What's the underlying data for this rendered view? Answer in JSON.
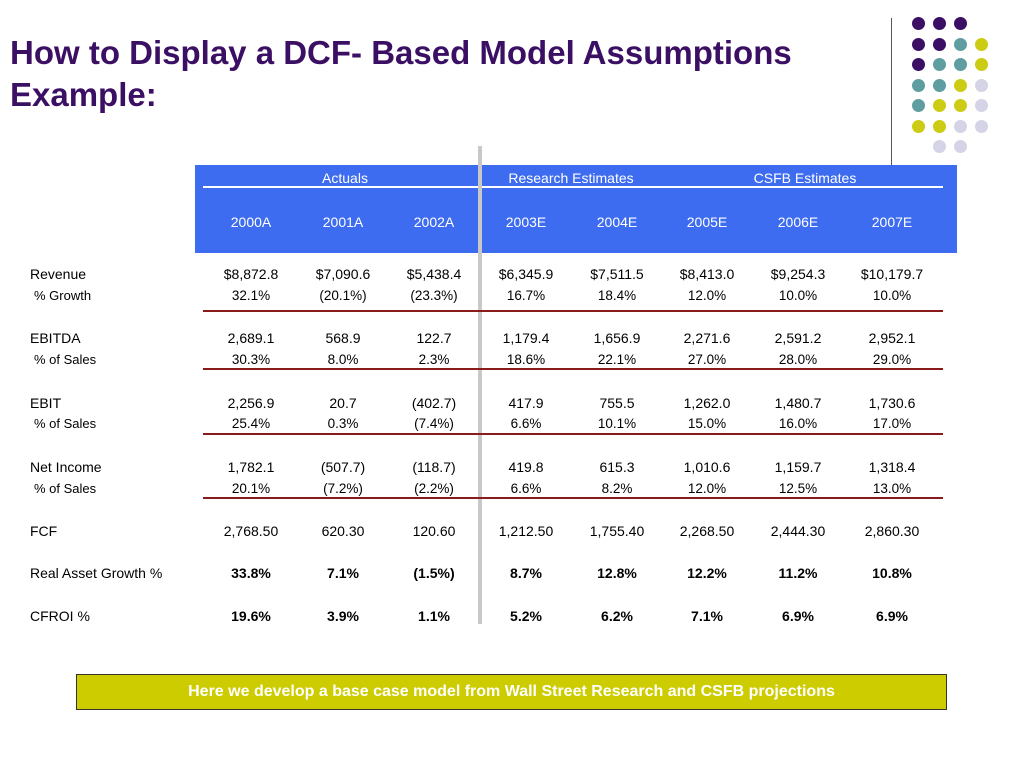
{
  "title_line1": "How to Display a DCF- Based Model Assumptions",
  "title_line2": "Example:",
  "header": {
    "groups": [
      "Actuals",
      "Research Estimates",
      "CSFB Estimates"
    ],
    "years": [
      "2000A",
      "2001A",
      "2002A",
      "2003E",
      "2004E",
      "2005E",
      "2006E",
      "2007E"
    ]
  },
  "rows": [
    {
      "label": "Revenue",
      "values": [
        "$8,872.8",
        "$7,090.6",
        "$5,438.4",
        "$6,345.9",
        "$7,511.5",
        "$8,413.0",
        "$9,254.3",
        "$10,179.7"
      ]
    },
    {
      "label": "% Growth",
      "values": [
        "32.1%",
        "(20.1%)",
        "(23.3%)",
        "16.7%",
        "18.4%",
        "12.0%",
        "10.0%",
        "10.0%"
      ]
    },
    {
      "label": "EBITDA",
      "values": [
        "2,689.1",
        "568.9",
        "122.7",
        "1,179.4",
        "1,656.9",
        "2,271.6",
        "2,591.2",
        "2,952.1"
      ]
    },
    {
      "label": "% of Sales",
      "values": [
        "30.3%",
        "8.0%",
        "2.3%",
        "18.6%",
        "22.1%",
        "27.0%",
        "28.0%",
        "29.0%"
      ]
    },
    {
      "label": "EBIT",
      "values": [
        "2,256.9",
        "20.7",
        "(402.7)",
        "417.9",
        "755.5",
        "1,262.0",
        "1,480.7",
        "1,730.6"
      ]
    },
    {
      "label": "% of Sales",
      "values": [
        "25.4%",
        "0.3%",
        "(7.4%)",
        "6.6%",
        "10.1%",
        "15.0%",
        "16.0%",
        "17.0%"
      ]
    },
    {
      "label": "Net Income",
      "values": [
        "1,782.1",
        "(507.7)",
        "(118.7)",
        "419.8",
        "615.3",
        "1,010.6",
        "1,159.7",
        "1,318.4"
      ]
    },
    {
      "label": "% of Sales",
      "values": [
        "20.1%",
        "(7.2%)",
        "(2.2%)",
        "6.6%",
        "8.2%",
        "12.0%",
        "12.5%",
        "13.0%"
      ]
    },
    {
      "label": "FCF",
      "values": [
        "2,768.50",
        "620.30",
        "120.60",
        "1,212.50",
        "1,755.40",
        "2,268.50",
        "2,444.30",
        "2,860.30"
      ]
    },
    {
      "label": "Real Asset Growth %",
      "values": [
        "33.8%",
        "7.1%",
        "(1.5%)",
        "8.7%",
        "12.8%",
        "12.2%",
        "11.2%",
        "10.8%"
      ]
    },
    {
      "label": "CFROI %",
      "values": [
        "19.6%",
        "3.9%",
        "1.1%",
        "5.2%",
        "6.2%",
        "7.1%",
        "6.9%",
        "6.9%"
      ]
    }
  ],
  "banner": "Here we develop a base case model from Wall Street Research and CSFB projections",
  "colors": {
    "title": "#3b0f63",
    "header_bg": "#3d6cf0",
    "separator_line": "#8b1a1a",
    "banner_bg": "#cccc00",
    "dot_purple": "#3b0f63",
    "dot_teal": "#5f9ea0",
    "dot_yellow": "#cccc14",
    "dot_lavender": "#d4d4e6"
  }
}
